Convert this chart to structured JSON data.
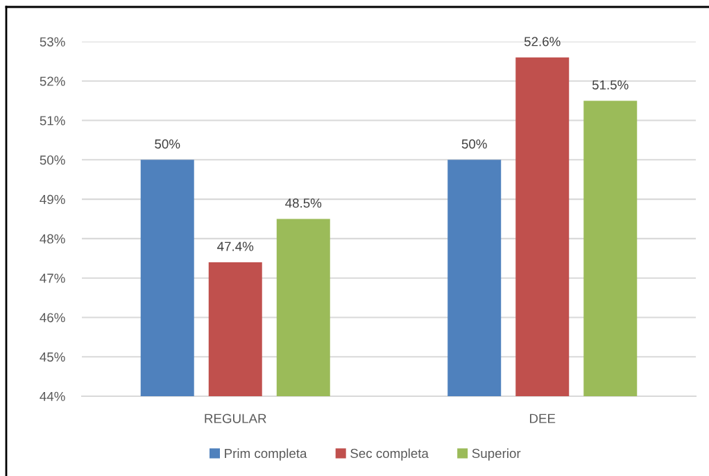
{
  "chart_data": {
    "type": "bar",
    "categories": [
      "REGULAR",
      "DEE"
    ],
    "series": [
      {
        "name": "Prim completa",
        "color": "#4f81bd",
        "values": [
          50,
          50
        ],
        "value_labels": [
          "50%",
          "50%"
        ]
      },
      {
        "name": "Sec completa",
        "color": "#c0504d",
        "values": [
          47.4,
          52.6
        ],
        "value_labels": [
          "47.4%",
          "52.6%"
        ]
      },
      {
        "name": "Superior",
        "color": "#9bbb59",
        "values": [
          48.5,
          51.5
        ],
        "value_labels": [
          "48.5%",
          "51.5%"
        ]
      }
    ],
    "ylim": [
      44,
      53
    ],
    "yticks": [
      {
        "value": 44,
        "label": "44%"
      },
      {
        "value": 45,
        "label": "45%"
      },
      {
        "value": 46,
        "label": "46%"
      },
      {
        "value": 47,
        "label": "47%"
      },
      {
        "value": 48,
        "label": "48%"
      },
      {
        "value": 49,
        "label": "49%"
      },
      {
        "value": 50,
        "label": "50%"
      },
      {
        "value": 51,
        "label": "51%"
      },
      {
        "value": 52,
        "label": "52%"
      },
      {
        "value": 53,
        "label": "53%"
      }
    ],
    "grid": "y",
    "legend": "bottom"
  }
}
